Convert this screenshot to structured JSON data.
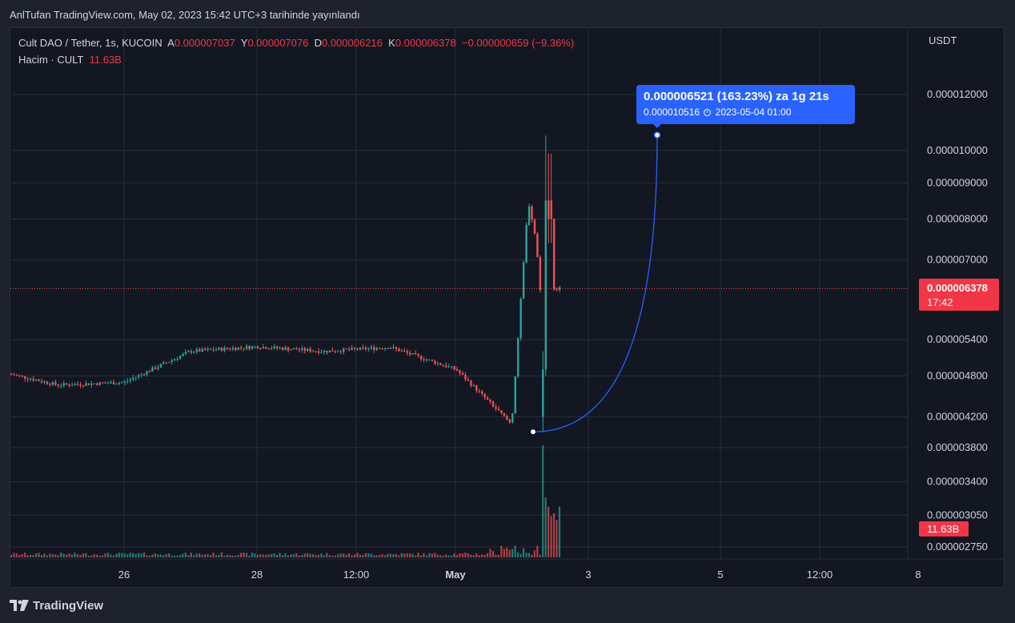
{
  "header": {
    "published_text": "AnlTufan TradingView.com, May 02, 2023 15:42 UTC+3 tarihinde yayınlandı"
  },
  "legend": {
    "symbol": "Cult DAO / Tether, 1s, KUCOIN",
    "open_label": "A",
    "open_value": "0.000007037",
    "high_label": "Y",
    "high_value": "0.000007076",
    "low_label": "D",
    "low_value": "0.000006216",
    "close_label": "K",
    "close_value": "0.000006378",
    "change": "−0.000000659 (−9.36%)",
    "volume_label": "Hacim · CULT",
    "volume_value": "11.63B"
  },
  "price_axis": {
    "unit": "USDT",
    "current_price": "0.000006378",
    "countdown": "17:42",
    "volume_badge": "11.63B"
  },
  "projection": {
    "line1": "0.000006521 (163.23%) za 1g 21s",
    "target_price": "0.000010516",
    "target_time": "2023-05-04  01:00"
  },
  "branding": {
    "name": "TradingView"
  },
  "colors": {
    "up": "#26a69a",
    "down": "#ef5350",
    "projection": "#2962ff",
    "background": "#131722",
    "grid": "#2a2e39"
  },
  "chart_data": {
    "type": "candlestick",
    "scale": "log",
    "price_ticks": [
      "0.000012000",
      "0.000010000",
      "0.000009000",
      "0.000008000",
      "0.000007000",
      "0.000005400",
      "0.000004800",
      "0.000004200",
      "0.000003800",
      "0.000003400",
      "0.000003050",
      "0.000002750"
    ],
    "time_ticks": [
      "26",
      "28",
      "12:00",
      "May",
      "3",
      "5",
      "12:00",
      "8"
    ],
    "bold_time_tick": "May",
    "series_close_approx": [
      {
        "t": "2023-04-24",
        "close": 4.9e-06
      },
      {
        "t": "2023-04-25",
        "close": 4.66e-06
      },
      {
        "t": "2023-04-26",
        "close": 4.7e-06
      },
      {
        "t": "2023-04-27",
        "close": 5.2e-06
      },
      {
        "t": "2023-04-28",
        "close": 5.28e-06
      },
      {
        "t": "2023-04-29",
        "close": 5.2e-06
      },
      {
        "t": "2023-04-30",
        "close": 5.27e-06
      },
      {
        "t": "2023-05-01",
        "close": 4.9e-06
      },
      {
        "t": "2023-05-01T20:00",
        "close": 4.1e-06
      },
      {
        "t": "2023-05-02T02:00",
        "close": 8.5e-06
      },
      {
        "t": "2023-05-02T05:00",
        "close": 7.4e-06
      },
      {
        "t": "2023-05-02T06:00",
        "close": 6.378e-06
      }
    ],
    "spike_high": 1.05e-05,
    "projection_start": {
      "t": "2023-05-02T06:00",
      "price": 4e-06
    },
    "projection_end": {
      "t": "2023-05-04T01:00",
      "price": 1.0516e-05
    }
  }
}
